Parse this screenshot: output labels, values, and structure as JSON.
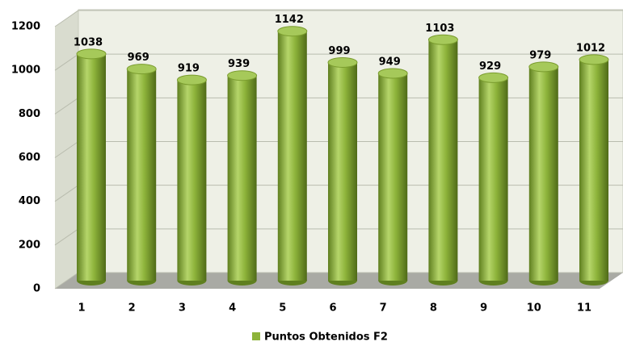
{
  "chart_data": {
    "type": "bar",
    "categories": [
      "1",
      "2",
      "3",
      "4",
      "5",
      "6",
      "7",
      "8",
      "9",
      "10",
      "11"
    ],
    "series": [
      {
        "name": "Puntos Obtenidos F2",
        "color": "#8db33a",
        "values": [
          1038,
          969,
          919,
          939,
          1142,
          999,
          949,
          1103,
          929,
          979,
          1012
        ]
      }
    ],
    "ylim": [
      0,
      1200
    ],
    "yticks": [
      0,
      200,
      400,
      600,
      800,
      1000,
      1200
    ],
    "grid": true,
    "legend": "bottom"
  }
}
